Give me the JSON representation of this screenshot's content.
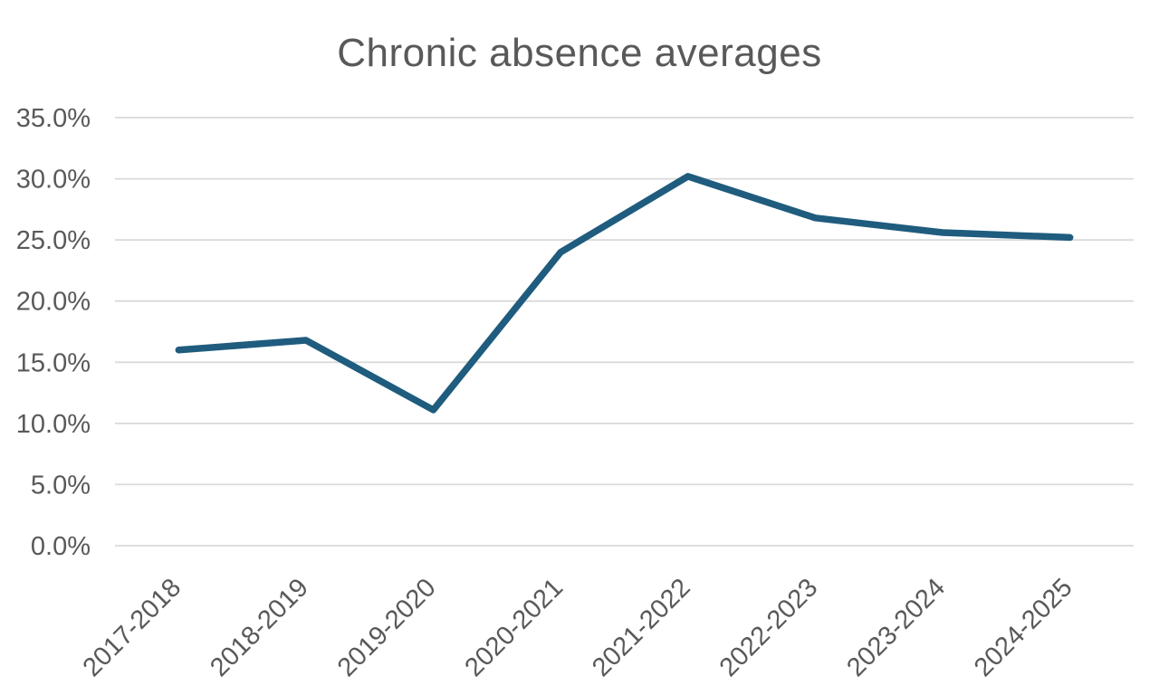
{
  "chart_data": {
    "type": "line",
    "title": "Chronic absence averages",
    "categories": [
      "2017-2018",
      "2018-2019",
      "2019-2020",
      "2020-2021",
      "2021-2022",
      "2022-2023",
      "2023-2024",
      "2024-2025"
    ],
    "values": [
      16.0,
      16.8,
      11.1,
      24.0,
      30.2,
      26.8,
      25.6,
      25.2
    ],
    "xlabel": "",
    "ylabel": "",
    "ylim": [
      0,
      35
    ],
    "ytick_step": 5,
    "ytick_labels": [
      "0.0%",
      "5.0%",
      "10.0%",
      "15.0%",
      "20.0%",
      "25.0%",
      "30.0%",
      "35.0%"
    ],
    "grid": true,
    "legend": "none",
    "styles": {
      "line_color": "#1f5c7e",
      "grid_color": "#d9d9d9",
      "text_color": "#595959",
      "title_color": "#595959",
      "background": "#ffffff"
    }
  }
}
